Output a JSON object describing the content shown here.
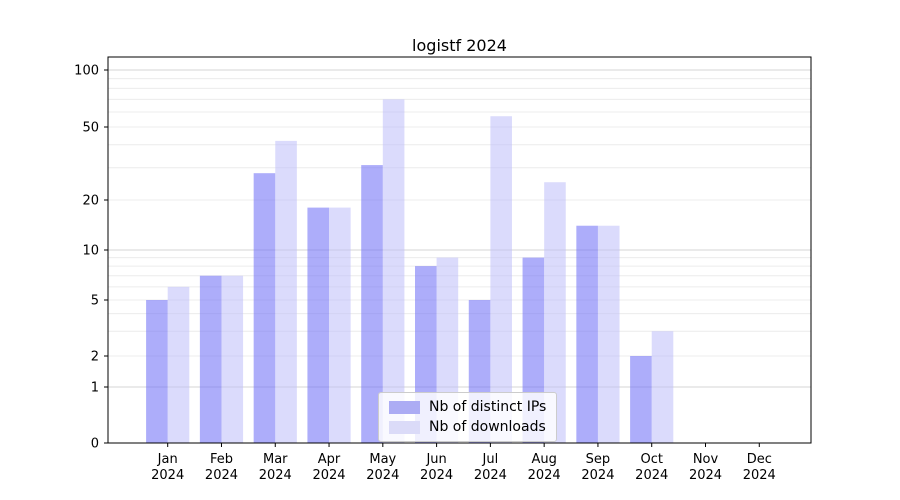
{
  "chart_data": {
    "type": "bar",
    "title": "logistf 2024",
    "categories": [
      "Jan 2024",
      "Feb 2024",
      "Mar 2024",
      "Apr 2024",
      "May 2024",
      "Jun 2024",
      "Jul 2024",
      "Aug 2024",
      "Sep 2024",
      "Oct 2024",
      "Nov 2024",
      "Dec 2024"
    ],
    "series": [
      {
        "name": "Nb of distinct IPs",
        "color": "#acacf4",
        "fill": "rgba(118,118,246,0.6)",
        "values": [
          5,
          7,
          28,
          18,
          31,
          8,
          5,
          9,
          14,
          2,
          0,
          0
        ]
      },
      {
        "name": "Nb of downloads",
        "color": "#dbdbf8",
        "fill": "rgba(190,190,250,0.55)",
        "values": [
          6,
          7,
          42,
          18,
          70,
          9,
          57,
          25,
          14,
          3,
          0,
          0
        ]
      }
    ],
    "xlabel": "",
    "ylabel": "",
    "yscale": "log-like (compressed below 5, linear 0-1)",
    "ylim": [
      0,
      100
    ],
    "yticks": [
      100,
      50,
      20,
      10,
      5,
      2,
      1,
      0
    ],
    "minor_gridline_values": [
      3,
      4,
      6,
      7,
      8,
      9,
      30,
      40,
      60,
      70,
      80,
      90
    ],
    "labeled_gridline_values": [
      2,
      5,
      20,
      50
    ],
    "major_gridline_values": [
      1,
      10,
      100
    ],
    "grid": "horizontal only",
    "legend_position": "lower center"
  },
  "colors": {
    "axis": "#000000",
    "grid_minor": "#ececec",
    "grid_major": "#d4d4d4",
    "tick_label": "#000000",
    "background": "#ffffff"
  }
}
